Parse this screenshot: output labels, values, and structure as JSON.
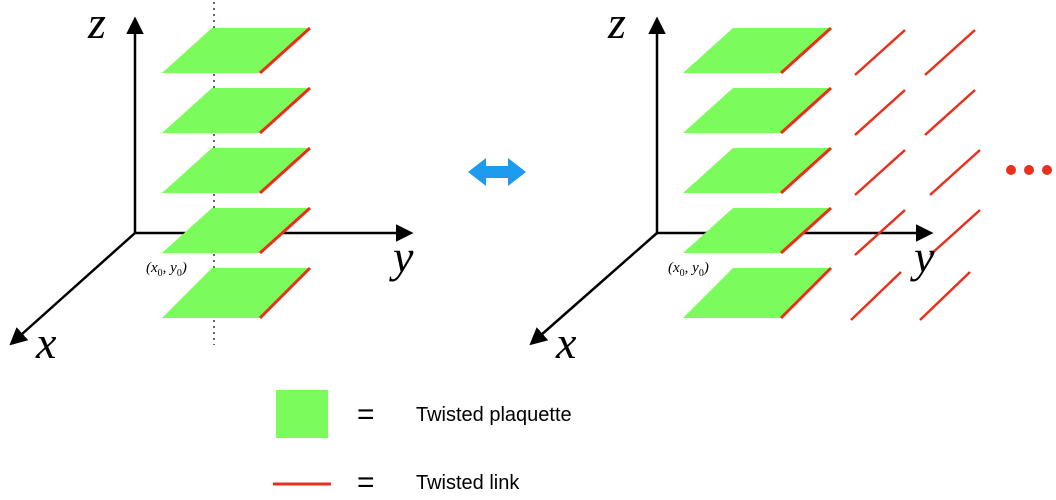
{
  "colors": {
    "plaquette": "#7CFC5C",
    "link": "#E8301C",
    "arrow": "#1E9BEF",
    "axis": "#000000"
  },
  "left_panel": {
    "axis_z": "z",
    "axis_y": "y",
    "axis_x": "x",
    "origin": {
      "open": "(",
      "x": "x",
      "x_sub": "0",
      "comma": ", ",
      "y": "y",
      "y_sub": "0",
      "close": ")"
    }
  },
  "right_panel": {
    "axis_z": "z",
    "axis_y": "y",
    "axis_x": "x",
    "origin": {
      "open": "(",
      "x": "x",
      "x_sub": "0",
      "comma": ", ",
      "y": "y",
      "y_sub": "0",
      "close": ")"
    },
    "continuation_icon": "ellipsis-dots"
  },
  "equivalence_icon": "double-arrow",
  "legend": {
    "plaquette_eq": "=",
    "plaquette_label": "Twisted plaquette",
    "link_eq": "=",
    "link_label": "Twisted link"
  }
}
